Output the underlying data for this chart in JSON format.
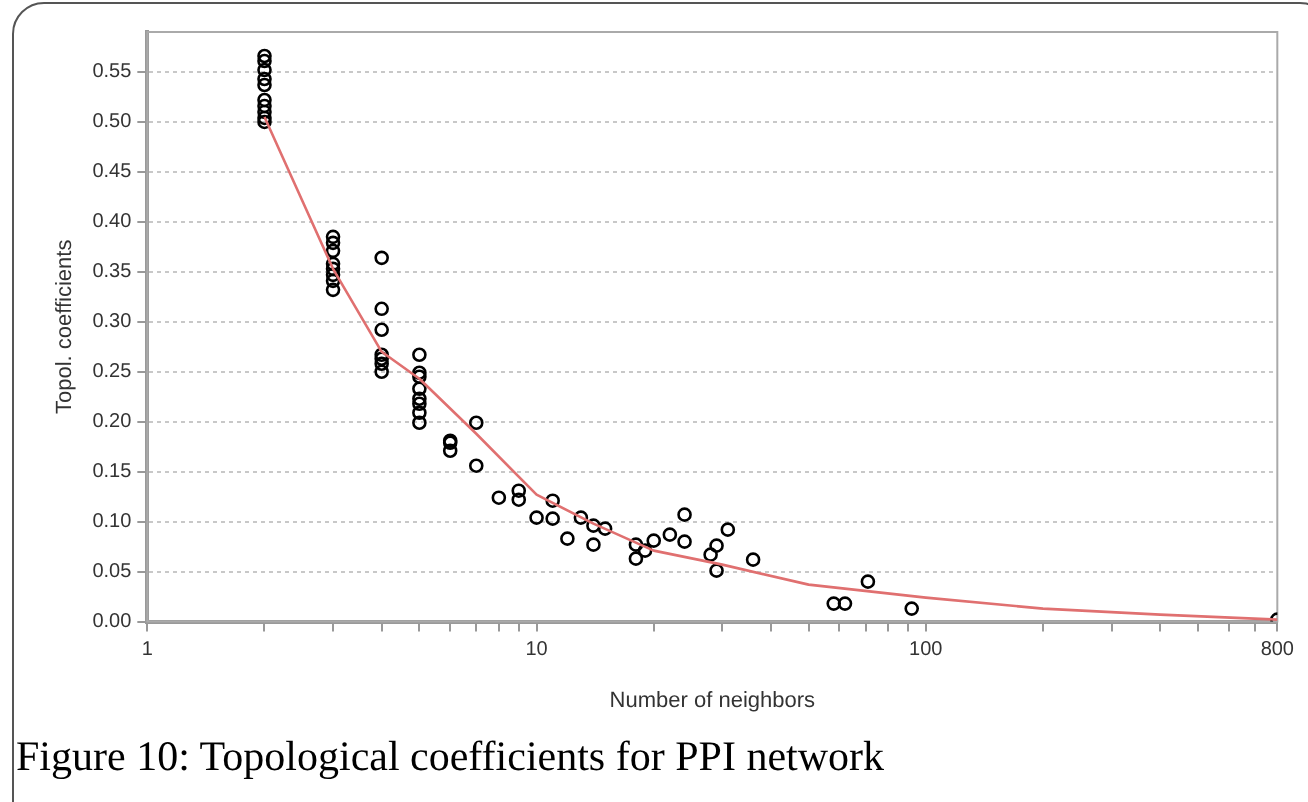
{
  "chart_data": {
    "type": "scatter",
    "xlabel": "Number of neighbors",
    "ylabel": "Topol. coefficients",
    "annotations": [
      "Figure 10: Topological coefficients for PPI network"
    ],
    "log": "x",
    "grid": "y",
    "legend": false,
    "marker": "circle",
    "xlim": [
      1,
      800
    ],
    "ylim": [
      0,
      0.59
    ],
    "xticks": [
      1,
      {
        "value": 2,
        "label": null
      },
      {
        "value": 3,
        "label": null
      },
      {
        "value": 4,
        "label": null
      },
      {
        "value": 5,
        "label": null
      },
      {
        "value": 6,
        "label": null
      },
      {
        "value": 7,
        "label": null
      },
      {
        "value": 8,
        "label": null
      },
      {
        "value": 9,
        "label": null
      },
      10,
      {
        "value": 20,
        "label": null
      },
      {
        "value": 30,
        "label": null
      },
      {
        "value": 40,
        "label": null
      },
      {
        "value": 50,
        "label": null
      },
      {
        "value": 60,
        "label": null
      },
      {
        "value": 70,
        "label": null
      },
      {
        "value": 80,
        "label": null
      },
      {
        "value": 90,
        "label": null
      },
      100,
      {
        "value": 200,
        "label": null
      },
      {
        "value": 300,
        "label": null
      },
      {
        "value": 400,
        "label": null
      },
      {
        "value": 500,
        "label": null
      },
      {
        "value": 600,
        "label": null
      },
      {
        "value": 700,
        "label": null
      },
      800
    ],
    "yticks": [
      {
        "value": 0,
        "label": "0.00"
      },
      {
        "value": 0.05,
        "label": "0.05"
      },
      {
        "value": 0.1,
        "label": "0.10"
      },
      {
        "value": 0.15,
        "label": "0.15"
      },
      {
        "value": 0.2,
        "label": "0.20"
      },
      {
        "value": 0.25,
        "label": "0.25"
      },
      {
        "value": 0.3,
        "label": "0.30"
      },
      {
        "value": 0.35,
        "label": "0.35"
      },
      {
        "value": 0.4,
        "label": "0.40"
      },
      {
        "value": 0.45,
        "label": "0.45"
      },
      {
        "value": 0.5,
        "label": "0.50"
      },
      {
        "value": 0.55,
        "label": "0.55"
      }
    ],
    "series": [
      {
        "type": "scatter",
        "color": "#000000",
        "x": [
          2,
          2,
          2,
          2,
          2,
          2,
          2,
          2,
          2,
          2,
          3,
          3,
          3,
          3,
          3,
          3,
          3,
          3,
          4,
          4,
          4,
          4,
          4,
          4,
          4,
          5,
          5,
          5,
          5,
          5,
          5,
          5,
          5,
          6,
          6,
          6,
          7,
          7,
          8,
          9,
          9,
          10,
          11,
          11,
          12,
          13,
          14,
          14,
          15,
          18,
          18,
          19,
          20,
          22,
          24,
          24,
          28,
          29,
          29,
          31,
          36,
          58,
          62,
          71,
          92,
          800
        ],
        "values": [
          0.566,
          0.561,
          0.552,
          0.543,
          0.537,
          0.522,
          0.516,
          0.51,
          0.504,
          0.5,
          0.385,
          0.379,
          0.371,
          0.358,
          0.353,
          0.347,
          0.341,
          0.332,
          0.364,
          0.313,
          0.292,
          0.267,
          0.263,
          0.258,
          0.25,
          0.267,
          0.249,
          0.245,
          0.233,
          0.223,
          0.218,
          0.209,
          0.199,
          0.181,
          0.179,
          0.171,
          0.199,
          0.156,
          0.124,
          0.131,
          0.122,
          0.104,
          0.121,
          0.103,
          0.083,
          0.104,
          0.096,
          0.077,
          0.093,
          0.077,
          0.063,
          0.071,
          0.081,
          0.087,
          0.107,
          0.08,
          0.067,
          0.076,
          0.051,
          0.092,
          0.062,
          0.018,
          0.018,
          0.04,
          0.013,
          0.002
        ]
      },
      {
        "type": "line",
        "color": "#e07070",
        "marker": "none",
        "x": [
          2,
          3,
          4,
          5,
          7,
          10,
          14,
          20,
          30,
          50,
          100,
          200,
          400,
          800
        ],
        "values": [
          0.505,
          0.353,
          0.27,
          0.243,
          0.188,
          0.127,
          0.098,
          0.071,
          0.057,
          0.037,
          0.024,
          0.013,
          0.007,
          0.002
        ]
      }
    ]
  }
}
